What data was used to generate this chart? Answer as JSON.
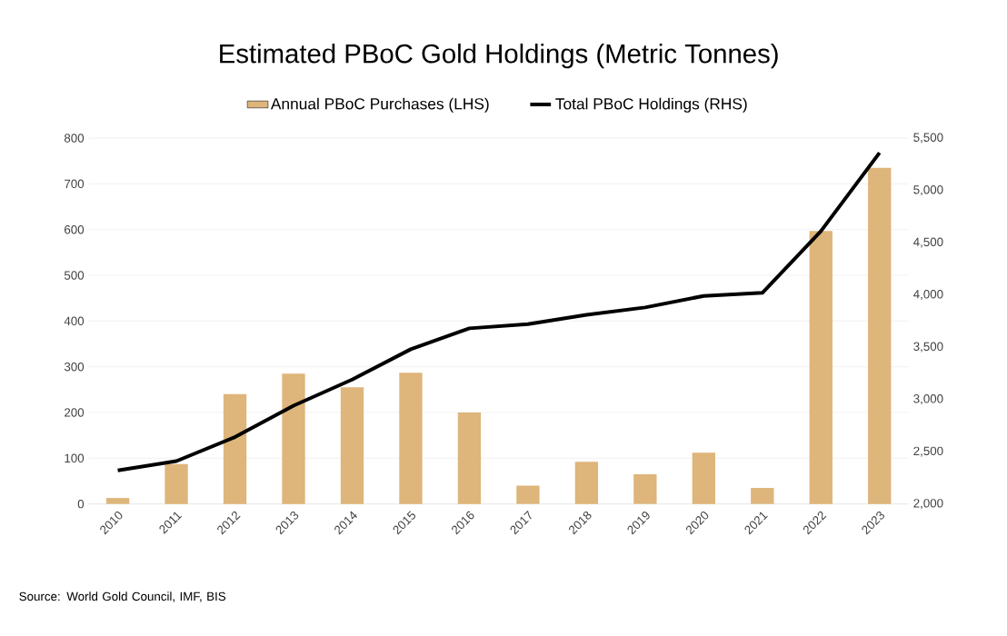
{
  "chart_data": {
    "type": "bar",
    "title": "Estimated PBoC Gold Holdings (Metric Tonnes)",
    "categories": [
      "2010",
      "2011",
      "2012",
      "2013",
      "2014",
      "2015",
      "2016",
      "2017",
      "2018",
      "2019",
      "2020",
      "2021",
      "2022",
      "2023"
    ],
    "series": [
      {
        "name": "Annual PBoC Purchases (LHS)",
        "color": "#deb57a",
        "values": [
          13,
          87,
          240,
          285,
          255,
          287,
          200,
          40,
          92,
          65,
          112,
          35,
          597,
          735
        ]
      },
      {
        "name": "Total PBoC Holdings (RHS)",
        "type": "line",
        "axis": "y2",
        "color": "#000000",
        "values": [
          2320,
          2410,
          2640,
          2940,
          3190,
          3480,
          3680,
          3720,
          3810,
          3880,
          3990,
          4020,
          4610,
          5360
        ]
      }
    ],
    "ylim": [
      0,
      800
    ],
    "yticks": [
      0,
      100,
      200,
      300,
      400,
      500,
      600,
      700,
      800
    ],
    "y2lim": [
      2000,
      5500
    ],
    "y2ticks": [
      {
        "value": 2000,
        "label": "2,000"
      },
      {
        "value": 2500,
        "label": "2,500"
      },
      {
        "value": 3000,
        "label": "3,000"
      },
      {
        "value": 3500,
        "label": "3,500"
      },
      {
        "value": 4000,
        "label": "4,000"
      },
      {
        "value": 4500,
        "label": "4,500"
      },
      {
        "value": 5000,
        "label": "5,000"
      },
      {
        "value": 5500,
        "label": "5,500"
      }
    ],
    "grid": "y",
    "legend": "top",
    "annotations": [
      "Source: World Gold Council, IMF, BIS"
    ]
  }
}
